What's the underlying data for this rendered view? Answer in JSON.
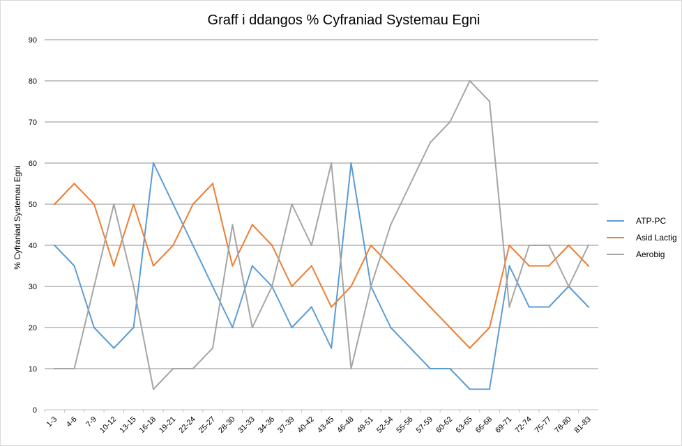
{
  "chart_data": {
    "type": "line",
    "title": "Graff i ddangos % Cyfraniad Systemau Egni",
    "xlabel": "",
    "ylabel": "% Cyfraniad Systemau Egni",
    "ylim": [
      0,
      90
    ],
    "yticks": [
      0,
      10,
      20,
      30,
      40,
      50,
      60,
      70,
      80,
      90
    ],
    "grid": true,
    "legend_position": "right",
    "categories": [
      "1-3",
      "4-6",
      "7-9",
      "10-12",
      "13-15",
      "16-18",
      "19-21",
      "22-24",
      "25-27",
      "28-30",
      "31-33",
      "34-36",
      "37-39",
      "40-42",
      "43-45",
      "46-48",
      "49-51",
      "52-54",
      "55-56",
      "57-59",
      "60-62",
      "63-65",
      "66-68",
      "69-71",
      "72-74",
      "75-77",
      "78-80",
      "81-83"
    ],
    "series": [
      {
        "name": "ATP-PC",
        "color": "#5b9bd5",
        "values": [
          40,
          35,
          20,
          15,
          20,
          60,
          50,
          40,
          30,
          20,
          35,
          30,
          20,
          25,
          15,
          60,
          30,
          20,
          15,
          10,
          10,
          5,
          5,
          35,
          25,
          25,
          30,
          25
        ]
      },
      {
        "name": "Asid Lactig",
        "color": "#ed7d31",
        "values": [
          50,
          55,
          50,
          35,
          50,
          35,
          40,
          50,
          55,
          35,
          45,
          40,
          30,
          35,
          25,
          30,
          40,
          35,
          30,
          25,
          20,
          15,
          20,
          40,
          35,
          35,
          40,
          35
        ]
      },
      {
        "name": "Aerobig",
        "color": "#a5a5a5",
        "values": [
          10,
          10,
          30,
          50,
          30,
          5,
          10,
          10,
          15,
          45,
          20,
          30,
          50,
          40,
          60,
          10,
          30,
          45,
          55,
          65,
          70,
          80,
          75,
          25,
          40,
          40,
          30,
          40
        ]
      }
    ]
  }
}
